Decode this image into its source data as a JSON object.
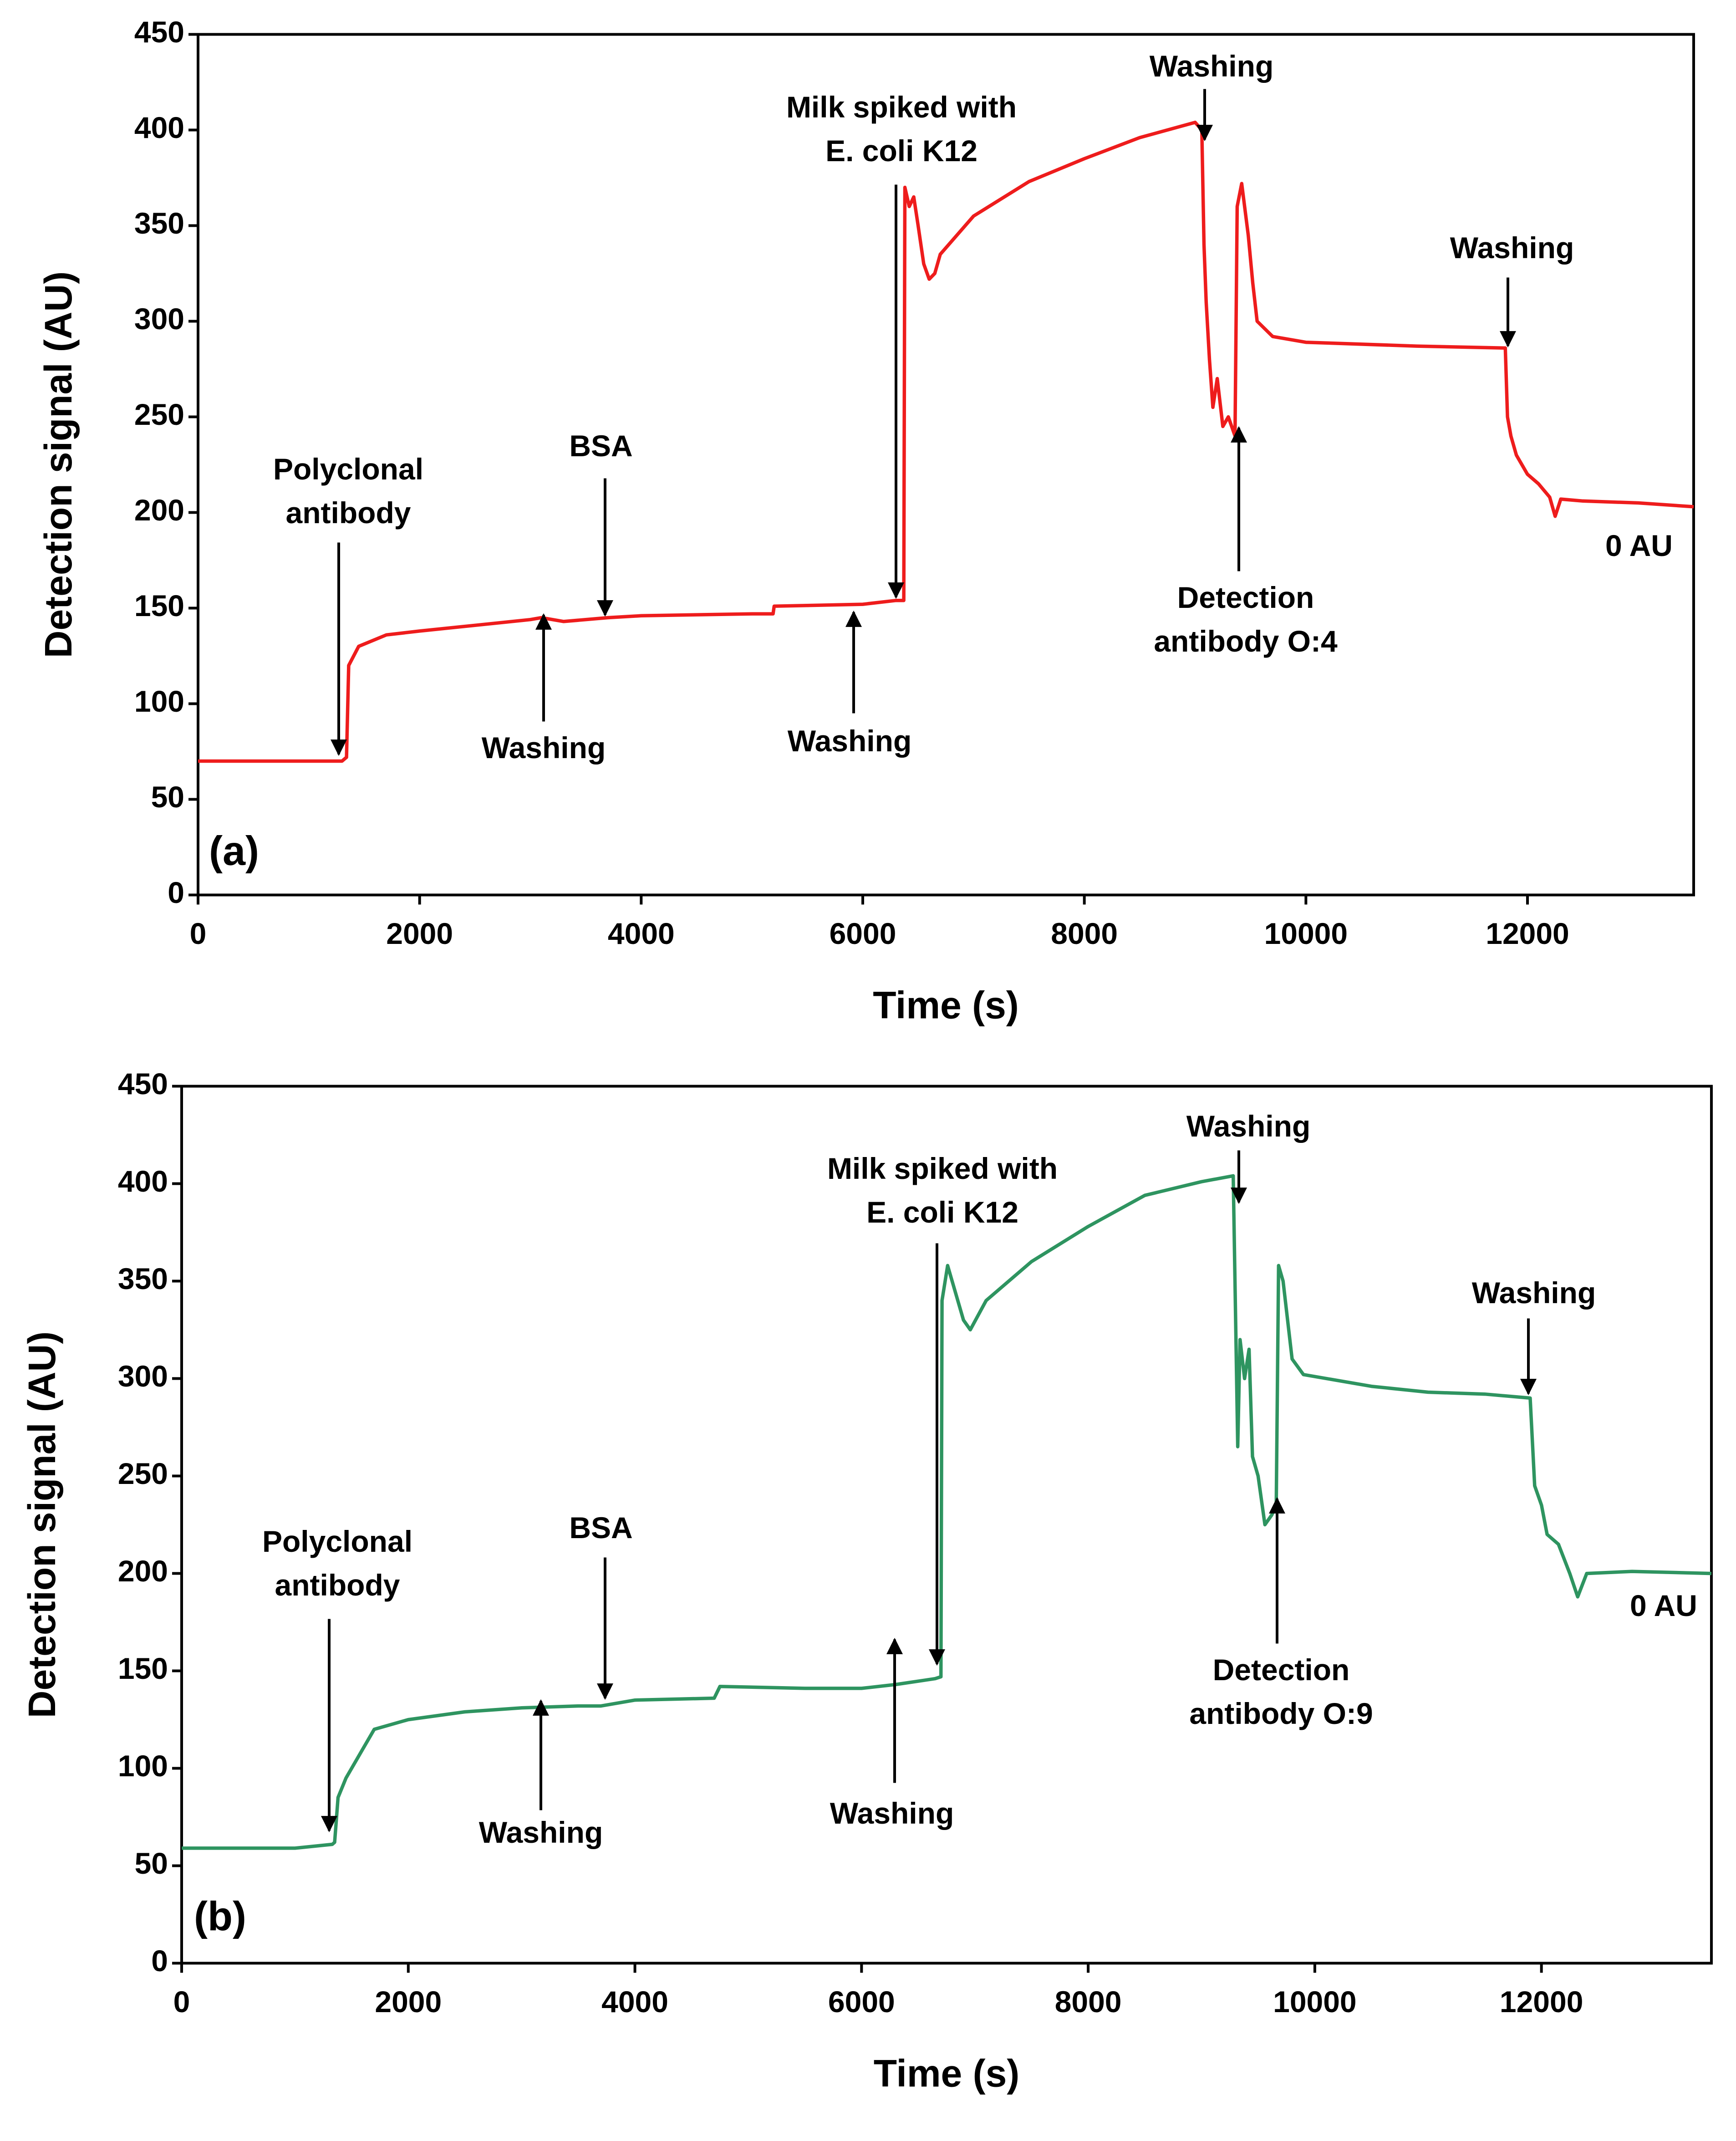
{
  "chart_data": [
    {
      "type": "line",
      "panel_label": "(a)",
      "x_label": "Time (s)",
      "y_label": "Detection signal (AU)",
      "xlim": [
        0,
        13500
      ],
      "xticks": [
        0,
        2000,
        4000,
        6000,
        8000,
        10000,
        12000
      ],
      "ylim": [
        0,
        450
      ],
      "yticks": [
        0,
        50,
        100,
        150,
        200,
        250,
        300,
        350,
        400,
        450
      ],
      "x": [
        0,
        1300,
        1340,
        1360,
        1450,
        1700,
        2000,
        2500,
        3000,
        3100,
        3300,
        3700,
        4000,
        5000,
        5190,
        5200,
        6000,
        6300,
        6370,
        6380,
        6420,
        6460,
        6500,
        6550,
        6600,
        6650,
        6700,
        7000,
        7500,
        8000,
        8500,
        9000,
        9060,
        9080,
        9100,
        9130,
        9160,
        9200,
        9250,
        9300,
        9360,
        9380,
        9420,
        9480,
        9520,
        9560,
        9700,
        10000,
        11000,
        11800,
        11820,
        11850,
        11900,
        12000,
        12100,
        12200,
        12250,
        12300,
        12500,
        13000,
        13500
      ],
      "series": [
        {
          "color": "#ee1c1c",
          "values": [
            70,
            70,
            72,
            120,
            130,
            136,
            138,
            141,
            144,
            145,
            143,
            145,
            146,
            147,
            147,
            151,
            152,
            154,
            154,
            370,
            360,
            365,
            350,
            330,
            322,
            325,
            335,
            355,
            373,
            385,
            396,
            404,
            400,
            340,
            310,
            280,
            255,
            270,
            245,
            250,
            240,
            360,
            372,
            345,
            320,
            300,
            292,
            289,
            287,
            286,
            250,
            240,
            230,
            220,
            215,
            208,
            198,
            207,
            206,
            205,
            203
          ]
        }
      ],
      "annotations": [
        [
          "Polyclonal",
          "antibody"
        ],
        [
          "BSA"
        ],
        [
          "Washing"
        ],
        [
          "Washing"
        ],
        [
          "Milk spiked with",
          "E. coli  K12"
        ],
        [
          "Washing"
        ],
        [
          "Washing"
        ],
        [
          "Detection",
          "antibody O:4"
        ],
        [
          "0 AU"
        ]
      ]
    },
    {
      "type": "line",
      "panel_label": "(b)",
      "x_label": "Time (s)",
      "y_label": "Detection signal (AU)",
      "xlim": [
        0,
        13500
      ],
      "xticks": [
        0,
        2000,
        4000,
        6000,
        8000,
        10000,
        12000
      ],
      "ylim": [
        0,
        450
      ],
      "yticks": [
        0,
        50,
        100,
        150,
        200,
        250,
        300,
        350,
        400,
        450
      ],
      "x": [
        0,
        1000,
        1330,
        1350,
        1380,
        1450,
        1600,
        1700,
        2000,
        2500,
        3000,
        3500,
        3700,
        4000,
        4700,
        4750,
        5500,
        6000,
        6300,
        6650,
        6700,
        6710,
        6760,
        6800,
        6900,
        6960,
        7100,
        7500,
        8000,
        8500,
        9000,
        9280,
        9320,
        9340,
        9380,
        9420,
        9450,
        9500,
        9560,
        9620,
        9660,
        9680,
        9720,
        9800,
        9900,
        10500,
        11000,
        11500,
        11900,
        11940,
        12000,
        12050,
        12150,
        12250,
        12320,
        12400,
        12800,
        13500
      ],
      "series": [
        {
          "color": "#2e9460",
          "values": [
            59,
            59,
            61,
            62,
            85,
            95,
            110,
            120,
            125,
            129,
            131,
            132,
            132,
            135,
            136,
            142,
            141,
            141,
            143,
            146,
            147,
            340,
            358,
            350,
            330,
            325,
            340,
            360,
            378,
            394,
            401,
            404,
            265,
            320,
            300,
            315,
            260,
            250,
            225,
            230,
            235,
            358,
            350,
            310,
            302,
            296,
            293,
            292,
            290,
            245,
            235,
            220,
            215,
            200,
            188,
            200,
            201,
            200
          ]
        }
      ],
      "annotations": [
        [
          "Polyclonal",
          "antibody"
        ],
        [
          "BSA"
        ],
        [
          "Washing"
        ],
        [
          "Washing"
        ],
        [
          "Milk spiked with",
          "E. coli  K12"
        ],
        [
          "Washing"
        ],
        [
          "Washing"
        ],
        [
          "Detection",
          "antibody O:9"
        ],
        [
          "0 AU"
        ]
      ]
    }
  ]
}
